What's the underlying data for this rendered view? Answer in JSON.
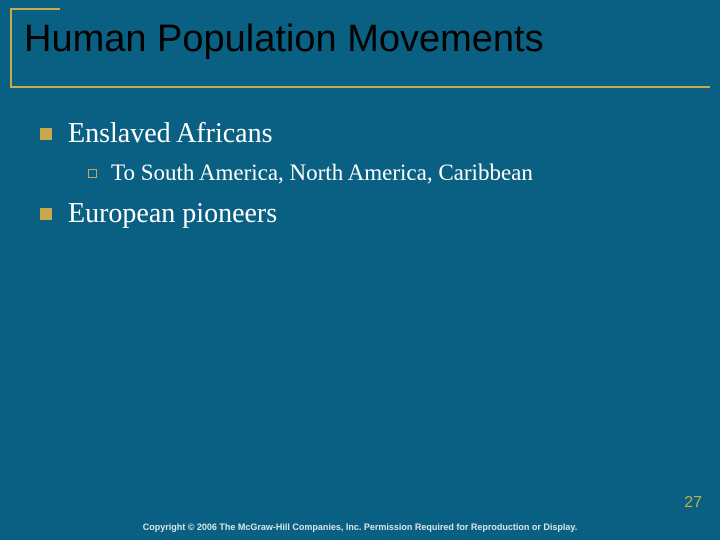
{
  "title": "Human Population Movements",
  "content": {
    "items": [
      {
        "level": 1,
        "text": "Enslaved Africans"
      },
      {
        "level": 2,
        "text": "To South America, North America, Caribbean"
      },
      {
        "level": 1,
        "text": "European pioneers"
      }
    ]
  },
  "page_number": "27",
  "copyright": "Copyright © 2006 The McGraw-Hill Companies, Inc. Permission Required for Reproduction or Display.",
  "colors": {
    "background": "#0a6083",
    "accent": "#c9a94c",
    "title_text": "#000000",
    "body_text": "#ffffff"
  },
  "typography": {
    "title_font": "Arial",
    "title_size_pt": 38,
    "body_font": "Times New Roman",
    "lvl1_size_pt": 28,
    "lvl2_size_pt": 23,
    "footer_size_pt": 9
  }
}
